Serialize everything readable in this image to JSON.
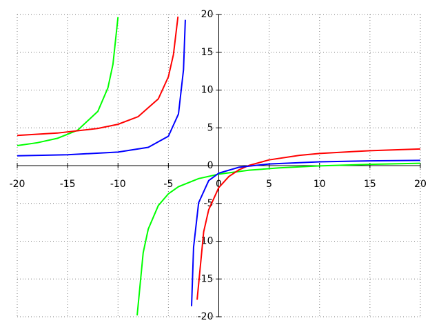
{
  "chart_data": {
    "type": "line",
    "xlim": [
      -20,
      20
    ],
    "ylim": [
      -20,
      20
    ],
    "xticks": [
      -20,
      -15,
      -10,
      -5,
      0,
      5,
      10,
      15,
      20
    ],
    "yticks": [
      -20,
      -15,
      -10,
      -5,
      0,
      5,
      10,
      15,
      20
    ],
    "grid": true,
    "series": [
      {
        "color": "#00ff00",
        "x": [
          -20,
          -18,
          -16,
          -14,
          -12,
          -11,
          -10.5,
          -10,
          -9,
          -8.1,
          -7.5,
          -7,
          -6,
          -5,
          -4,
          -2,
          0,
          3,
          6,
          10,
          15,
          20
        ],
        "values": [
          2.65,
          3.03,
          3.62,
          4.69,
          7.18,
          10.3,
          13.42,
          19.65,
          null,
          -19.83,
          -11.52,
          -8.4,
          -5.28,
          -3.73,
          -2.79,
          -1.72,
          -1.13,
          -0.61,
          -0.3,
          -0.03,
          0.17,
          0.31
        ]
      },
      {
        "color": "#ff0000",
        "x": [
          -20,
          -16,
          -12,
          -10,
          -8,
          -6,
          -5,
          -4.5,
          -4.05,
          -3,
          -2.15,
          -1.5,
          -1,
          0,
          1,
          2,
          3,
          5,
          8,
          10,
          15,
          20
        ],
        "values": [
          4.0,
          4.31,
          4.92,
          5.47,
          6.48,
          8.83,
          11.76,
          14.69,
          19.72,
          null,
          -17.75,
          -8.77,
          -5.84,
          -2.91,
          -1.44,
          -0.56,
          0.03,
          0.76,
          1.36,
          1.61,
          1.98,
          2.2
        ]
      },
      {
        "color": "#0000ff",
        "x": [
          -20,
          -15,
          -10,
          -7,
          -5,
          -4,
          -3.5,
          -3.32,
          -3,
          -2.7,
          -2.5,
          -2,
          -1,
          0,
          2,
          5,
          10,
          15,
          20
        ],
        "values": [
          1.3,
          1.44,
          1.79,
          2.42,
          3.89,
          6.83,
          12.7,
          19.3,
          null,
          -18.6,
          -10.79,
          -4.92,
          -1.98,
          -1.0,
          -0.22,
          0.22,
          0.5,
          0.63,
          0.7
        ]
      }
    ]
  }
}
